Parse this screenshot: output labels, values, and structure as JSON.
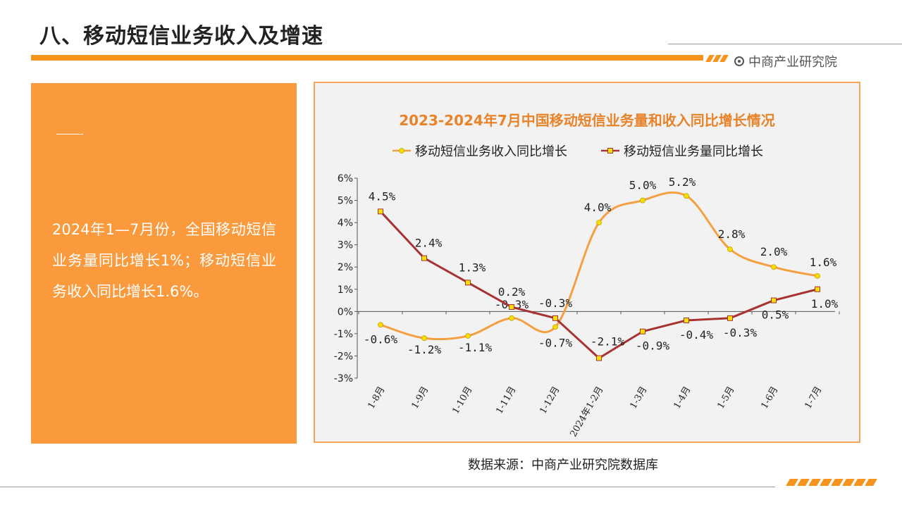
{
  "slide": {
    "title": "八、移动短信业务收入及增速",
    "brand": "中商产业研究院",
    "summary": "2024年1—7月份，全国移动短信业务量同比增长1%；移动短信业务收入同比增长1.6%。",
    "source": "数据来源：中商产业研究院数据库"
  },
  "colors": {
    "accent": "#f7941d",
    "series_revenue": "#f5a040",
    "series_volume": "#a83232",
    "marker_fill": "#f5e000"
  },
  "icons": {
    "brand_logo": "circle-dot-icon"
  },
  "chart_data": {
    "type": "line",
    "title": "2023-2024年7月中国移动短信业务量和收入同比增长情况",
    "categories": [
      "1-8月",
      "1-9月",
      "1-10月",
      "1-11月",
      "1-12月",
      "2024年1-2月",
      "1-3月",
      "1-4月",
      "1-5月",
      "1-6月",
      "1-7月"
    ],
    "series": [
      {
        "name": "移动短信业务收入同比增长",
        "values": [
          -0.6,
          -1.2,
          -1.1,
          -0.3,
          -0.7,
          4.0,
          5.0,
          5.2,
          2.8,
          2.0,
          1.6
        ],
        "labels": [
          "-0.6%",
          "-1.2%",
          "-1.1%",
          "-0.3%",
          "-0.7%",
          "4.0%",
          "5.0%",
          "5.2%",
          "2.8%",
          "2.0%",
          "1.6%"
        ]
      },
      {
        "name": "移动短信业务量同比增长",
        "values": [
          4.5,
          2.4,
          1.3,
          0.2,
          -0.3,
          -2.1,
          -0.9,
          -0.4,
          -0.3,
          0.5,
          1.0
        ],
        "labels": [
          "4.5%",
          "2.4%",
          "1.3%",
          "0.2%",
          "-0.3%",
          "-2.1%",
          "-0.9%",
          "-0.4%",
          "-0.3%",
          "0.5%",
          "1.0%"
        ]
      }
    ],
    "ylim": [
      -3,
      6
    ],
    "yticks": [
      -3,
      -2,
      -1,
      0,
      1,
      2,
      3,
      4,
      5,
      6
    ],
    "ytick_labels": [
      "-3%",
      "-2%",
      "-1%",
      "0%",
      "1%",
      "2%",
      "3%",
      "4%",
      "5%",
      "6%"
    ],
    "legend_position": "top",
    "grid": false
  }
}
